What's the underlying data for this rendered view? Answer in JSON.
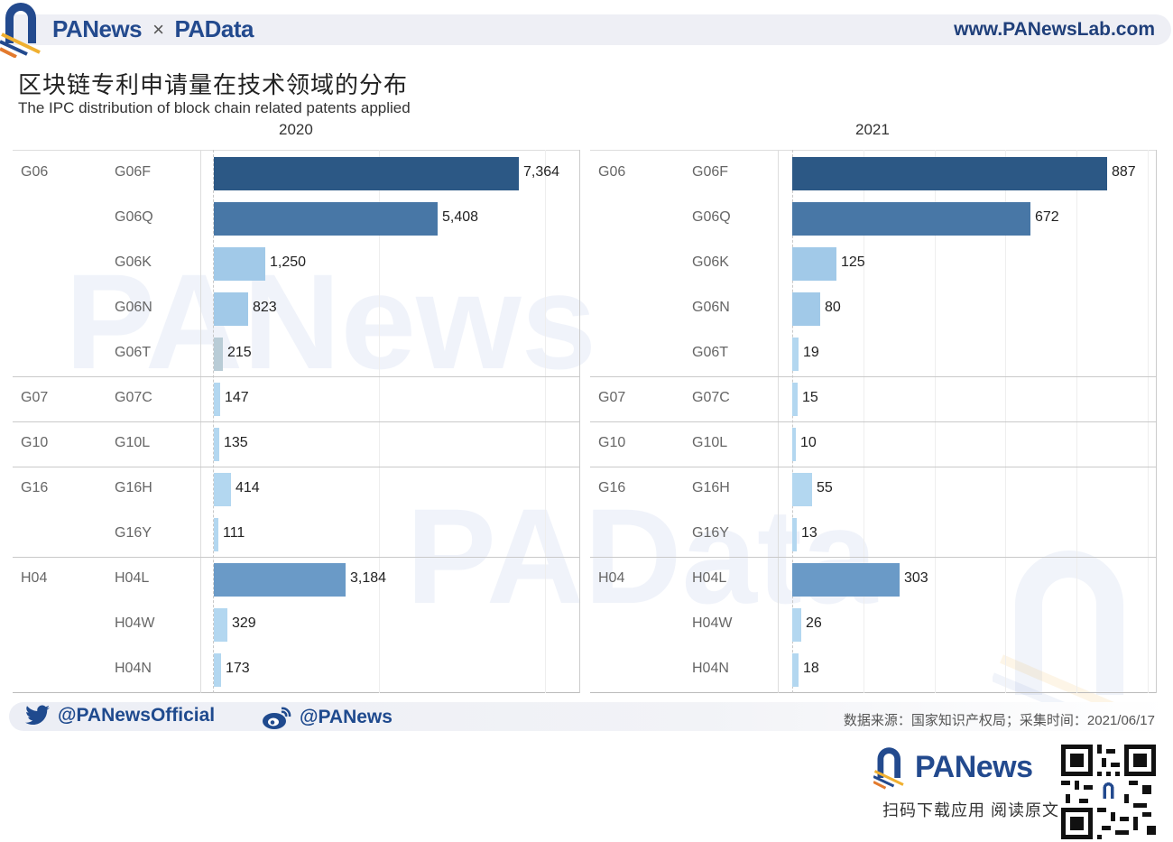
{
  "header": {
    "brand_left": "PANews",
    "brand_sep": "×",
    "brand_right": "PAData",
    "site_url": "www.PANewsLab.com"
  },
  "title": {
    "cn": "区块链专利申请量在技术领域的分布",
    "en": "The IPC distribution of block chain related patents applied"
  },
  "colors": {
    "dark": "#2c5885",
    "mid": "#4877a6",
    "h04l": "#6a9ac7",
    "light": "#a1c9e8",
    "pale": "#b3d7f0",
    "g06t_2020": "#b9ccd6",
    "brand_blue": "#234a8e",
    "brand_orange": "#e37a2e"
  },
  "chart_data": [
    {
      "type": "bar",
      "orientation": "horizontal",
      "title": "2020",
      "group_labels": [
        "G06",
        "G07",
        "G10",
        "G16",
        "H04"
      ],
      "categories": [
        "G06F",
        "G06Q",
        "G06K",
        "G06N",
        "G06T",
        "G07C",
        "G10L",
        "G16H",
        "G16Y",
        "H04L",
        "H04W",
        "H04N"
      ],
      "groups": [
        "G06",
        "G06",
        "G06",
        "G06",
        "G06",
        "G07",
        "G10",
        "G16",
        "G16",
        "H04",
        "H04",
        "H04"
      ],
      "values": [
        7364,
        5408,
        1250,
        823,
        215,
        147,
        135,
        414,
        111,
        3184,
        329,
        173
      ],
      "xlim": [
        0,
        8500
      ],
      "grid": true,
      "legend": "none"
    },
    {
      "type": "bar",
      "orientation": "horizontal",
      "title": "2021",
      "group_labels": [
        "G06",
        "G07",
        "G10",
        "G16",
        "H04"
      ],
      "categories": [
        "G06F",
        "G06Q",
        "G06K",
        "G06N",
        "G06T",
        "G07C",
        "G10L",
        "G16H",
        "G16Y",
        "H04L",
        "H04W",
        "H04N"
      ],
      "groups": [
        "G06",
        "G06",
        "G06",
        "G06",
        "G06",
        "G07",
        "G10",
        "G16",
        "G16",
        "H04",
        "H04",
        "H04"
      ],
      "values": [
        887,
        672,
        125,
        80,
        19,
        15,
        10,
        55,
        13,
        303,
        26,
        18
      ],
      "xlim": [
        0,
        1020
      ],
      "grid": true,
      "legend": "none"
    }
  ],
  "panels": [
    {
      "year": "2020",
      "rows": [
        {
          "group": "G06",
          "sub": "G06F",
          "label": "7,364"
        },
        {
          "group": "",
          "sub": "G06Q",
          "label": "5,408"
        },
        {
          "group": "",
          "sub": "G06K",
          "label": "1,250"
        },
        {
          "group": "",
          "sub": "G06N",
          "label": "823"
        },
        {
          "group": "",
          "sub": "G06T",
          "label": "215"
        },
        {
          "group": "G07",
          "sub": "G07C",
          "label": "147"
        },
        {
          "group": "G10",
          "sub": "G10L",
          "label": "135"
        },
        {
          "group": "G16",
          "sub": "G16H",
          "label": "414"
        },
        {
          "group": "",
          "sub": "G16Y",
          "label": "111"
        },
        {
          "group": "H04",
          "sub": "H04L",
          "label": "3,184"
        },
        {
          "group": "",
          "sub": "H04W",
          "label": "329"
        },
        {
          "group": "",
          "sub": "H04N",
          "label": "173"
        }
      ]
    },
    {
      "year": "2021",
      "rows": [
        {
          "group": "G06",
          "sub": "G06F",
          "label": "887"
        },
        {
          "group": "",
          "sub": "G06Q",
          "label": "672"
        },
        {
          "group": "",
          "sub": "G06K",
          "label": "125"
        },
        {
          "group": "",
          "sub": "G06N",
          "label": "80"
        },
        {
          "group": "",
          "sub": "G06T",
          "label": "19"
        },
        {
          "group": "G07",
          "sub": "G07C",
          "label": "15"
        },
        {
          "group": "G10",
          "sub": "G10L",
          "label": "10"
        },
        {
          "group": "G16",
          "sub": "G16H",
          "label": "55"
        },
        {
          "group": "",
          "sub": "G16Y",
          "label": "13"
        },
        {
          "group": "H04",
          "sub": "H04L",
          "label": "303"
        },
        {
          "group": "",
          "sub": "H04W",
          "label": "26"
        },
        {
          "group": "",
          "sub": "H04N",
          "label": "18"
        }
      ]
    }
  ],
  "footer": {
    "twitter_handle": "@PANewsOfficial",
    "weibo_handle": "@PANews",
    "source": "数据来源：国家知识产权局；采集时间：2021/06/17",
    "promo_brand": "PANews",
    "promo_cta": "扫码下载应用  阅读原文",
    "qr_label": "PANews"
  },
  "watermarks": {
    "top": "PANews",
    "mid": "PAData"
  }
}
